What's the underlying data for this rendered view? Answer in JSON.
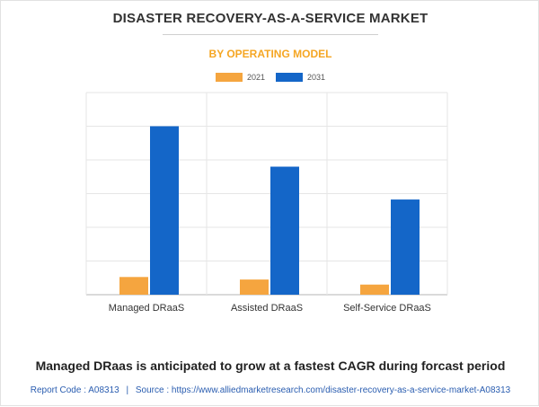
{
  "chart_data": {
    "type": "bar",
    "title": "DISASTER RECOVERY-AS-A-SERVICE MARKET",
    "subtitle": "BY OPERATING MODEL",
    "categories": [
      "Managed DRaaS",
      "Assisted DRaaS",
      "Self-Service DRaaS"
    ],
    "series": [
      {
        "name": "2021",
        "color": "#f5a53f",
        "values": [
          10.5,
          9,
          6
        ]
      },
      {
        "name": "2031",
        "color": "#1466c8",
        "values": [
          100,
          76,
          56.5
        ]
      }
    ],
    "ylim": [
      0,
      120
    ],
    "gridlines": [
      0,
      20,
      40,
      60,
      80,
      100,
      120
    ],
    "xlabel": "",
    "ylabel": "",
    "legend": "top-center"
  },
  "footer": {
    "headline": "Managed DRaas is anticipated to grow at a fastest CAGR during forcast period",
    "report_code_label": "Report Code : A08313",
    "separator": "|",
    "source_label": "Source : https://www.alliedmarketresearch.com/disaster-recovery-as-a-service-market-A08313"
  }
}
